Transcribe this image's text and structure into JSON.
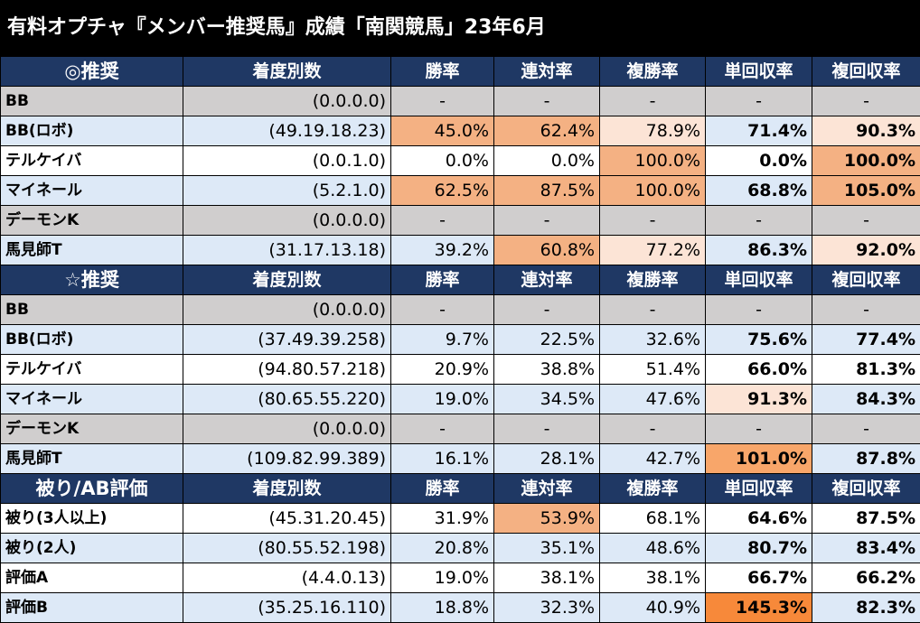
{
  "title": "有料オプチャ『メンバー推奨馬』成績「南関競馬」23年6月",
  "sections": [
    {
      "header": [
        "◎推奨",
        "着度別数",
        "勝率",
        "連対率",
        "複勝率",
        "単回収率",
        "複回収率"
      ],
      "rows": [
        {
          "name": "BB",
          "record": "(0.0.0.0)",
          "win": "-",
          "place2": "-",
          "show": "-",
          "win_return": "-",
          "show_return": "-"
        },
        {
          "name": "BB(ロボ)",
          "record": "(49.19.18.23)",
          "win": "45.0%",
          "place2": "62.4%",
          "show": "78.9%",
          "win_return": "71.4%",
          "show_return": "90.3%"
        },
        {
          "name": "テルケイバ",
          "record": "(0.0.1.0)",
          "win": "0.0%",
          "place2": "0.0%",
          "show": "100.0%",
          "win_return": "0.0%",
          "show_return": "100.0%"
        },
        {
          "name": "マイネール",
          "record": "(5.2.1.0)",
          "win": "62.5%",
          "place2": "87.5%",
          "show": "100.0%",
          "win_return": "68.8%",
          "show_return": "105.0%"
        },
        {
          "name": "デーモンK",
          "record": "(0.0.0.0)",
          "win": "-",
          "place2": "-",
          "show": "-",
          "win_return": "-",
          "show_return": "-"
        },
        {
          "name": "馬見師T",
          "record": "(31.17.13.18)",
          "win": "39.2%",
          "place2": "60.8%",
          "show": "77.2%",
          "win_return": "86.3%",
          "show_return": "92.0%"
        }
      ]
    },
    {
      "header": [
        "☆推奨",
        "着度別数",
        "勝率",
        "連対率",
        "複勝率",
        "単回収率",
        "複回収率"
      ],
      "rows": [
        {
          "name": "BB",
          "record": "(0.0.0.0)",
          "win": "-",
          "place2": "-",
          "show": "-",
          "win_return": "-",
          "show_return": "-"
        },
        {
          "name": "BB(ロボ)",
          "record": "(37.49.39.258)",
          "win": "9.7%",
          "place2": "22.5%",
          "show": "32.6%",
          "win_return": "75.6%",
          "show_return": "77.4%"
        },
        {
          "name": "テルケイバ",
          "record": "(94.80.57.218)",
          "win": "20.9%",
          "place2": "38.8%",
          "show": "51.4%",
          "win_return": "66.0%",
          "show_return": "81.3%"
        },
        {
          "name": "マイネール",
          "record": "(80.65.55.220)",
          "win": "19.0%",
          "place2": "34.5%",
          "show": "47.6%",
          "win_return": "91.3%",
          "show_return": "84.3%"
        },
        {
          "name": "デーモンK",
          "record": "(0.0.0.0)",
          "win": "-",
          "place2": "-",
          "show": "-",
          "win_return": "-",
          "show_return": "-"
        },
        {
          "name": "馬見師T",
          "record": "(109.82.99.389)",
          "win": "16.1%",
          "place2": "28.1%",
          "show": "42.7%",
          "win_return": "101.0%",
          "show_return": "87.8%"
        }
      ]
    },
    {
      "header": [
        "被り/AB評価",
        "着度別数",
        "勝率",
        "連対率",
        "複勝率",
        "単回収率",
        "複回収率"
      ],
      "rows": [
        {
          "name": "被り(3人以上)",
          "record": "(45.31.20.45)",
          "win": "31.9%",
          "place2": "53.9%",
          "show": "68.1%",
          "win_return": "64.6%",
          "show_return": "87.5%"
        },
        {
          "name": "被り(2人)",
          "record": "(80.55.52.198)",
          "win": "20.8%",
          "place2": "35.1%",
          "show": "48.6%",
          "win_return": "80.7%",
          "show_return": "83.4%"
        },
        {
          "name": "評価A",
          "record": "(4.4.0.13)",
          "win": "19.0%",
          "place2": "38.1%",
          "show": "38.1%",
          "win_return": "66.7%",
          "show_return": "66.2%"
        },
        {
          "name": "評価B",
          "record": "(35.25.16.110)",
          "win": "18.8%",
          "place2": "32.3%",
          "show": "40.9%",
          "win_return": "145.3%",
          "show_return": "82.3%"
        }
      ]
    }
  ]
}
